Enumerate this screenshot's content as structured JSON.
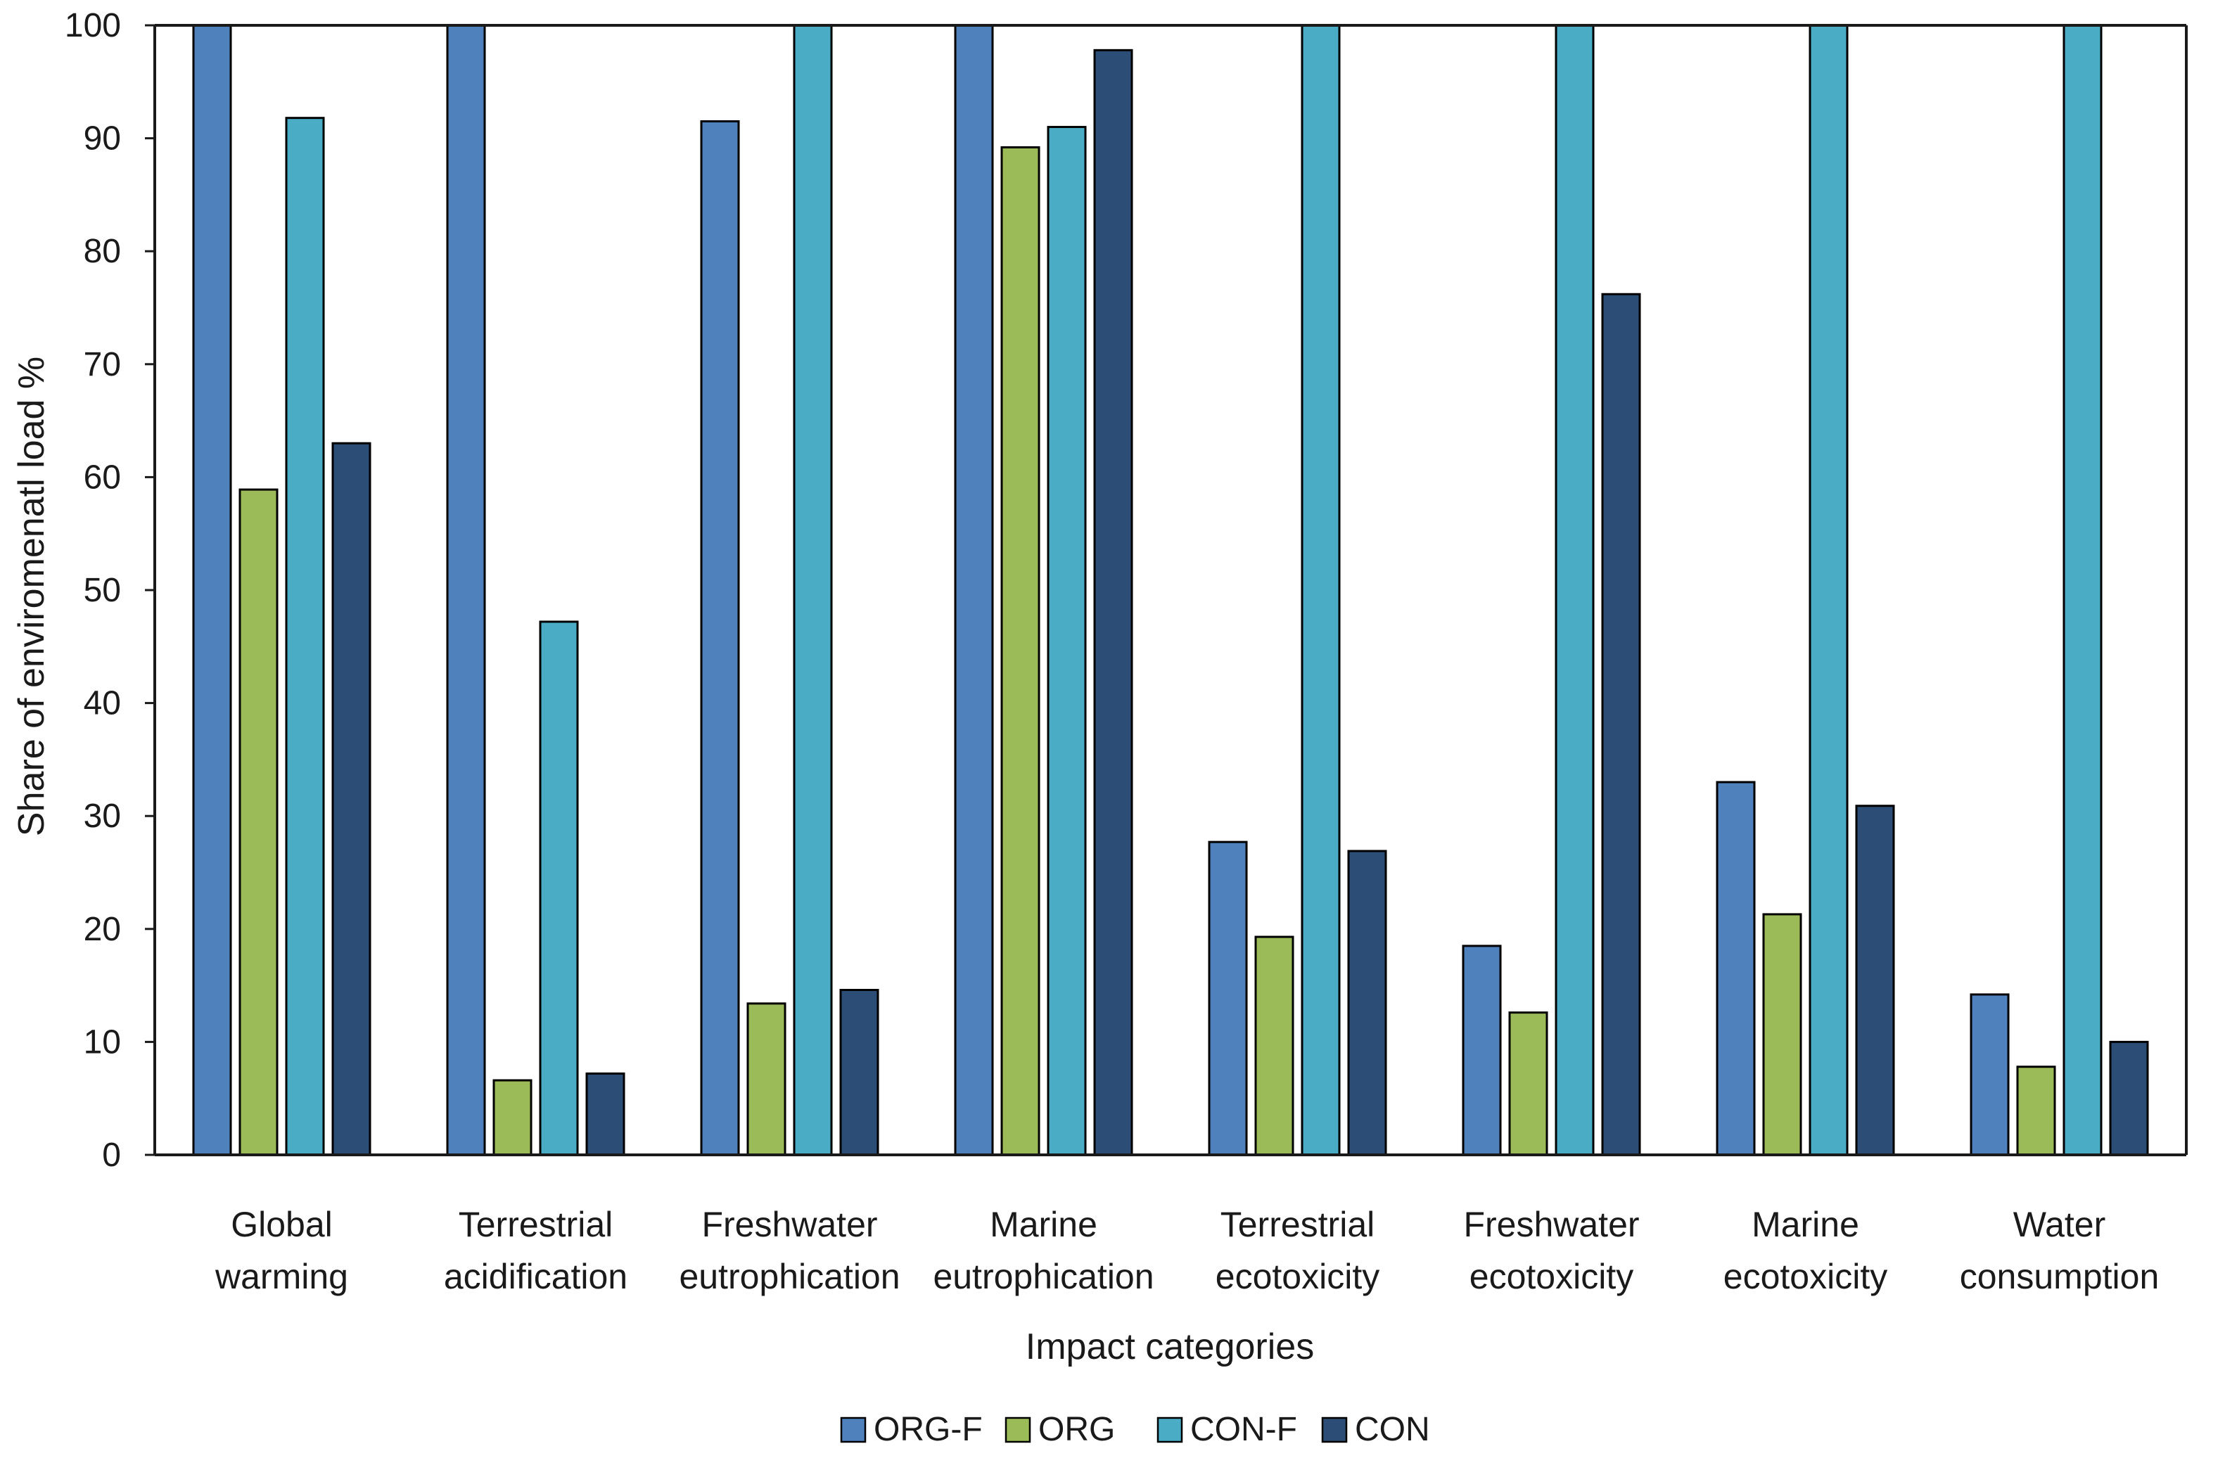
{
  "chart_data": {
    "type": "bar",
    "title": "",
    "xlabel": "Impact categories",
    "ylabel": "Share of enviromenatl load %",
    "ylim": [
      0,
      100
    ],
    "yticks": [
      0,
      10,
      20,
      30,
      40,
      50,
      60,
      70,
      80,
      90,
      100
    ],
    "grid": false,
    "legend_position": "bottom",
    "categories": [
      [
        "Global",
        "warming"
      ],
      [
        "Terrestrial",
        "acidification"
      ],
      [
        "Freshwater",
        "eutrophication"
      ],
      [
        "Marine",
        "eutrophication"
      ],
      [
        "Terrestrial",
        "ecotoxicity"
      ],
      [
        "Freshwater",
        "ecotoxicity"
      ],
      [
        "Marine",
        "ecotoxicity"
      ],
      [
        "Water",
        "consumption"
      ]
    ],
    "series": [
      {
        "name": "ORG-F",
        "color": "#4f81bd",
        "values": [
          100,
          100,
          91.5,
          100,
          27.7,
          18.5,
          33,
          14.2
        ]
      },
      {
        "name": "ORG",
        "color": "#9bbb59",
        "values": [
          58.9,
          6.6,
          13.4,
          89.2,
          19.3,
          12.6,
          21.3,
          7.8
        ]
      },
      {
        "name": "CON-F",
        "color": "#4bacc6",
        "values": [
          91.8,
          47.2,
          100,
          91,
          100,
          100,
          100,
          100
        ]
      },
      {
        "name": "CON",
        "color": "#2c4d75",
        "values": [
          63,
          7.2,
          14.6,
          97.8,
          26.9,
          76.2,
          30.9,
          10
        ]
      }
    ]
  }
}
